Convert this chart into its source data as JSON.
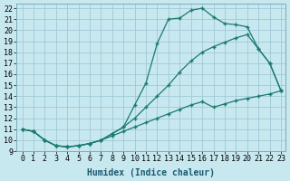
{
  "xlabel": "Humidex (Indice chaleur)",
  "background_color": "#c8e8f0",
  "grid_color": "#a0c8d8",
  "line_color": "#1a7a6e",
  "xlim": [
    -0.5,
    23.4
  ],
  "ylim": [
    9,
    22.4
  ],
  "xticks": [
    0,
    1,
    2,
    3,
    4,
    5,
    6,
    7,
    8,
    9,
    10,
    11,
    12,
    13,
    14,
    15,
    16,
    17,
    18,
    19,
    20,
    21,
    22,
    23
  ],
  "yticks": [
    9,
    10,
    11,
    12,
    13,
    14,
    15,
    16,
    17,
    18,
    19,
    20,
    21,
    22
  ],
  "line_bottom_x": [
    0,
    1,
    2,
    3,
    4,
    5,
    6,
    7,
    8,
    9,
    10,
    11,
    12,
    13,
    14,
    15,
    16,
    17,
    18,
    19,
    20,
    21,
    22,
    23
  ],
  "line_bottom_y": [
    11.0,
    10.8,
    10.0,
    9.5,
    9.4,
    9.5,
    9.7,
    10.0,
    10.4,
    10.8,
    11.2,
    11.6,
    12.0,
    12.4,
    12.8,
    13.2,
    13.5,
    13.0,
    13.3,
    13.6,
    13.8,
    14.0,
    14.2,
    14.5
  ],
  "line_mid_x": [
    0,
    1,
    2,
    3,
    4,
    5,
    6,
    7,
    8,
    9,
    10,
    11,
    12,
    13,
    14,
    15,
    16,
    17,
    18,
    19,
    20,
    21,
    22,
    23
  ],
  "line_mid_y": [
    11.0,
    10.8,
    10.0,
    9.5,
    9.4,
    9.5,
    9.7,
    10.0,
    10.6,
    11.2,
    12.0,
    13.0,
    14.0,
    15.0,
    16.2,
    17.2,
    18.0,
    18.5,
    18.9,
    19.3,
    19.6,
    18.3,
    17.0,
    14.5
  ],
  "line_top_x": [
    0,
    1,
    2,
    3,
    4,
    5,
    6,
    7,
    8,
    9,
    10,
    11,
    12,
    13,
    14,
    15,
    16,
    17,
    18,
    19,
    20,
    21,
    22,
    23
  ],
  "line_top_y": [
    11.0,
    10.8,
    10.0,
    9.5,
    9.4,
    9.5,
    9.7,
    10.0,
    10.6,
    11.2,
    13.2,
    15.2,
    18.8,
    21.0,
    21.1,
    21.8,
    22.0,
    21.2,
    20.6,
    20.5,
    20.3,
    18.3,
    17.0,
    14.5
  ],
  "fontsize_label": 7,
  "fontsize_tick": 6
}
